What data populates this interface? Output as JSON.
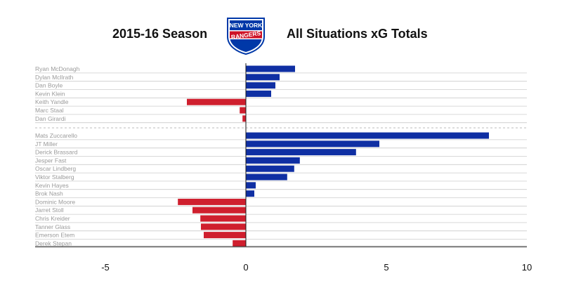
{
  "header": {
    "season_title": "2015-16 Season",
    "metric_title": "All Situations xG Totals"
  },
  "logo": {
    "line1": "NEW YORK",
    "line2": "RANGERS",
    "colors": {
      "shield": "#0038a8",
      "stripe": "#ce1126",
      "border": "#ffffff"
    }
  },
  "colors": {
    "positive": "#0f2fa3",
    "negative": "#cf1f2e",
    "gridline": "#cccccc",
    "zero_line": "#1a1a1a"
  },
  "chart_data": {
    "type": "bar",
    "orientation": "horizontal",
    "groups": [
      {
        "players": [
          "Ryan McDonagh",
          "Dylan McIlrath",
          "Dan Boyle",
          "Kevin Klein",
          "Keith Yandle",
          "Marc Staal",
          "Dan Girardi"
        ],
        "values": [
          1.75,
          1.2,
          1.05,
          0.9,
          -2.1,
          -0.22,
          -0.12
        ]
      },
      {
        "players": [
          "Mats Zuccarello",
          "JT Miller",
          "Derick Brassard",
          "Jesper Fast",
          "Oscar Lindberg",
          "Viktor Stalberg",
          "Kevin Hayes",
          "Brok Nash",
          "Dominic Moore",
          "Jarret Stoll",
          "Chris Kreider",
          "Tanner Glass",
          "Emerson Etem",
          "Derek Stepan"
        ],
        "values": [
          8.65,
          4.75,
          3.92,
          1.92,
          1.72,
          1.47,
          0.35,
          0.3,
          -2.42,
          -1.9,
          -1.62,
          -1.6,
          -1.5,
          -0.47
        ]
      }
    ],
    "xlim": [
      -7.5,
      10
    ],
    "xticks": [
      -5,
      0,
      5,
      10
    ],
    "xticklabels": [
      "-5",
      "0",
      "5",
      "10"
    ],
    "grid": true
  }
}
